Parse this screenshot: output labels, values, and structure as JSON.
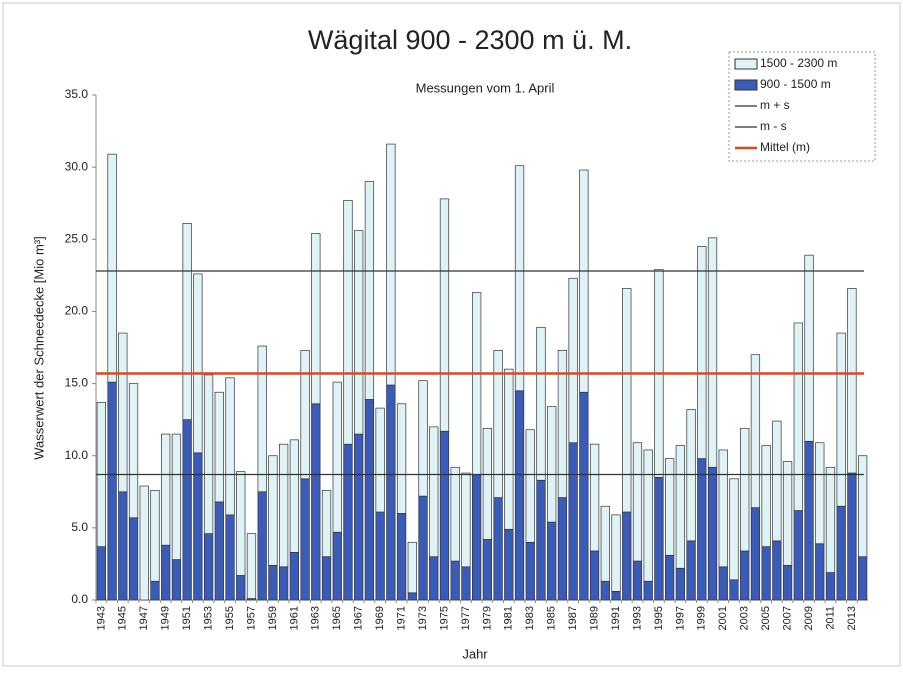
{
  "chart_data": {
    "type": "stacked_bar",
    "title": "Wägital 900 - 2300 m ü. M.",
    "subtitle": "Messungen vom 1. April",
    "x_label": "Jahr",
    "y_label": "Wasserwert der Schneedecke [Mio m³]",
    "categories": [
      "1943",
      null,
      "1945",
      null,
      "1947",
      null,
      "1949",
      null,
      "1951",
      null,
      "1953",
      null,
      "1955",
      null,
      "1957",
      null,
      "1959",
      null,
      "1961",
      null,
      "1963",
      null,
      "1965",
      null,
      "1967",
      null,
      "1969",
      null,
      "1971",
      null,
      "1973",
      null,
      "1975",
      null,
      "1977",
      null,
      "1979",
      null,
      "1981",
      null,
      "1983",
      null,
      "1985",
      null,
      "1987",
      null,
      "1989",
      null,
      "1991",
      null,
      "1993",
      null,
      "1995",
      null,
      "1997",
      null,
      "1999",
      null,
      "2001",
      null,
      "2003",
      null,
      "2005",
      null,
      "2007",
      null,
      "2009",
      null,
      "2011",
      null,
      "2013",
      null
    ],
    "series": [
      {
        "name": "900 - 1500 m",
        "color": "#3a5cb8",
        "values": [
          3.7,
          15.1,
          7.5,
          5.7,
          0.0,
          1.3,
          3.8,
          2.8,
          12.5,
          10.2,
          4.6,
          6.8,
          5.9,
          1.7,
          0.1,
          7.5,
          2.4,
          2.3,
          3.3,
          8.4,
          13.6,
          3.0,
          4.7,
          10.8,
          11.5,
          13.9,
          6.1,
          14.9,
          6.0,
          0.5,
          7.2,
          3.0,
          11.7,
          2.7,
          2.3,
          8.7,
          4.2,
          7.1,
          4.9,
          14.5,
          4.0,
          8.3,
          5.4,
          7.1,
          10.9,
          14.4,
          3.4,
          1.3,
          0.6,
          6.1,
          2.7,
          1.3,
          8.5,
          3.1,
          2.2,
          4.1,
          9.8,
          9.2,
          2.3,
          1.4,
          3.4,
          6.4,
          3.7,
          4.1,
          2.4,
          6.2,
          11.0,
          3.9,
          1.9,
          6.5,
          8.8,
          3.0
        ]
      },
      {
        "name": "1500 - 2300 m",
        "color": "#dff3f6",
        "values": [
          10.0,
          15.8,
          11.0,
          9.3,
          7.9,
          6.3,
          7.7,
          8.7,
          13.6,
          12.4,
          11.0,
          7.6,
          9.5,
          7.2,
          4.5,
          10.1,
          7.6,
          8.5,
          7.8,
          8.9,
          11.8,
          4.6,
          10.4,
          16.9,
          14.1,
          15.1,
          7.2,
          16.7,
          7.6,
          3.5,
          8.0,
          9.0,
          16.1,
          6.5,
          6.5,
          12.6,
          7.7,
          10.2,
          11.1,
          15.6,
          7.8,
          10.6,
          8.0,
          10.2,
          11.4,
          15.4,
          7.4,
          5.2,
          5.3,
          15.5,
          8.2,
          9.1,
          14.4,
          6.7,
          8.5,
          9.1,
          14.7,
          15.9,
          8.1,
          7.0,
          8.5,
          10.6,
          7.0,
          8.3,
          7.2,
          13.0,
          12.9,
          7.0,
          7.3,
          12.0,
          12.8,
          7.0
        ]
      }
    ],
    "reference_lines": [
      {
        "name": "m + s",
        "value": 22.8,
        "color": "#333333"
      },
      {
        "name": "m - s",
        "value": 8.7,
        "color": "#333333"
      },
      {
        "name": "Mittel (m)",
        "value": 15.7,
        "color": "#e2461c"
      }
    ],
    "ylim": [
      0,
      35
    ],
    "yticks": [
      {
        "value": 0,
        "label": "0.0"
      },
      {
        "value": 5,
        "label": "5.0"
      },
      {
        "value": 10,
        "label": "10.0"
      },
      {
        "value": 15,
        "label": "15.0"
      },
      {
        "value": 20,
        "label": "20.0"
      },
      {
        "value": 25,
        "label": "25.0"
      },
      {
        "value": 30,
        "label": "30.0"
      },
      {
        "value": 35,
        "label": "35.0"
      }
    ],
    "legend": "upper right"
  }
}
